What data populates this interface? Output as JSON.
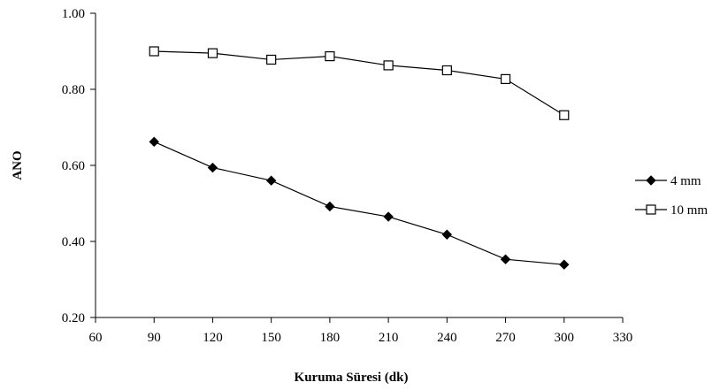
{
  "chart_data": {
    "type": "line",
    "title": "",
    "xlabel": "Kuruma Süresi (dk)",
    "ylabel": "ANO",
    "xlim": [
      60,
      330
    ],
    "ylim": [
      0.2,
      1.0
    ],
    "x_ticks": [
      60,
      90,
      120,
      150,
      180,
      210,
      240,
      270,
      300,
      330
    ],
    "x_tick_labels": [
      "60",
      "90",
      "120",
      "150",
      "180",
      "210",
      "240",
      "270",
      "300",
      "330"
    ],
    "y_ticks": [
      0.2,
      0.4,
      0.6,
      0.8,
      1.0
    ],
    "y_tick_labels": [
      "0.20",
      "0.40",
      "0.60",
      "0.80",
      "1.00"
    ],
    "grid": false,
    "legend_position": "right",
    "x": [
      90,
      120,
      150,
      180,
      210,
      240,
      270,
      300
    ],
    "series": [
      {
        "name": "4 mm",
        "marker": "filled-diamond",
        "color": "#000000",
        "values": [
          0.662,
          0.594,
          0.56,
          0.492,
          0.465,
          0.418,
          0.353,
          0.339
        ]
      },
      {
        "name": "10 mm",
        "marker": "open-square",
        "color": "#000000",
        "values": [
          0.9,
          0.895,
          0.878,
          0.887,
          0.863,
          0.85,
          0.827,
          0.732
        ]
      }
    ]
  }
}
